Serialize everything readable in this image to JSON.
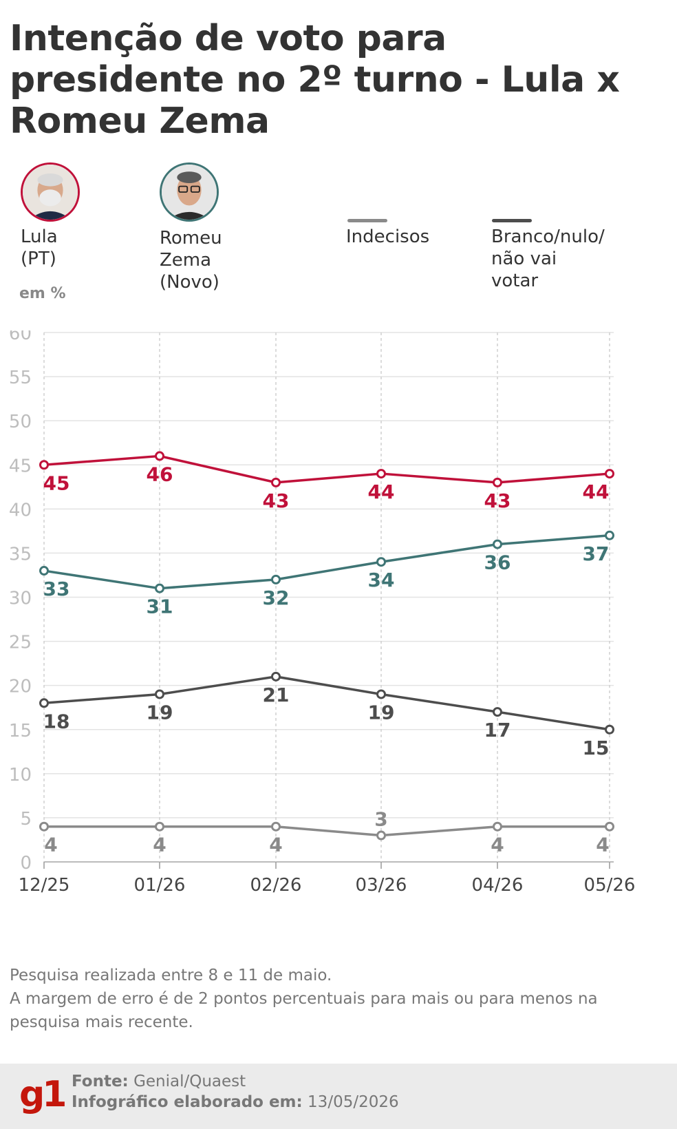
{
  "header": {
    "title": "Intenção de voto para presidente no 2º turno - Lula x Romeu Zema"
  },
  "legend": {
    "lula": {
      "label": "Lula (PT)",
      "color": "#c0113a",
      "icon": "lula-portrait"
    },
    "zema": {
      "label": "Romeu\nZema (Novo)",
      "color": "#3f7575",
      "icon": "zema-portrait"
    },
    "indecisos": {
      "label": "Indecisos",
      "color": "#8a8a8a"
    },
    "branco": {
      "label": "Branco/nulo/\nnão vai votar",
      "color": "#4d4d4d"
    }
  },
  "unit_label": "em %",
  "chart_data": {
    "type": "line",
    "categories": [
      "12/25",
      "01/26",
      "02/26",
      "03/26",
      "04/26",
      "05/26"
    ],
    "ylim": [
      0,
      60
    ],
    "yticks": [
      0,
      5,
      10,
      15,
      20,
      25,
      30,
      35,
      40,
      45,
      50,
      55,
      60
    ],
    "grid": true,
    "series": [
      {
        "name": "Lula (PT)",
        "color": "#c0113a",
        "values": [
          45,
          46,
          43,
          44,
          43,
          44
        ]
      },
      {
        "name": "Romeu Zema (Novo)",
        "color": "#3f7575",
        "values": [
          33,
          31,
          32,
          34,
          36,
          37
        ]
      },
      {
        "name": "Branco/nulo/não vai votar",
        "color": "#4d4d4d",
        "values": [
          18,
          19,
          21,
          19,
          17,
          15
        ]
      },
      {
        "name": "Indecisos",
        "color": "#8a8a8a",
        "values": [
          4,
          4,
          4,
          3,
          4,
          4
        ]
      }
    ]
  },
  "note": {
    "line1": "Pesquisa realizada entre 8 e 11 de maio.",
    "line2": "A margem de erro é de 2 pontos percentuais para mais ou para menos na pesquisa mais recente."
  },
  "footer": {
    "logo": "g1",
    "source_label": "Fonte:",
    "source_value": "Genial/Quaest",
    "date_label": "Infográfico elaborado em:",
    "date_value": "13/05/2026"
  }
}
